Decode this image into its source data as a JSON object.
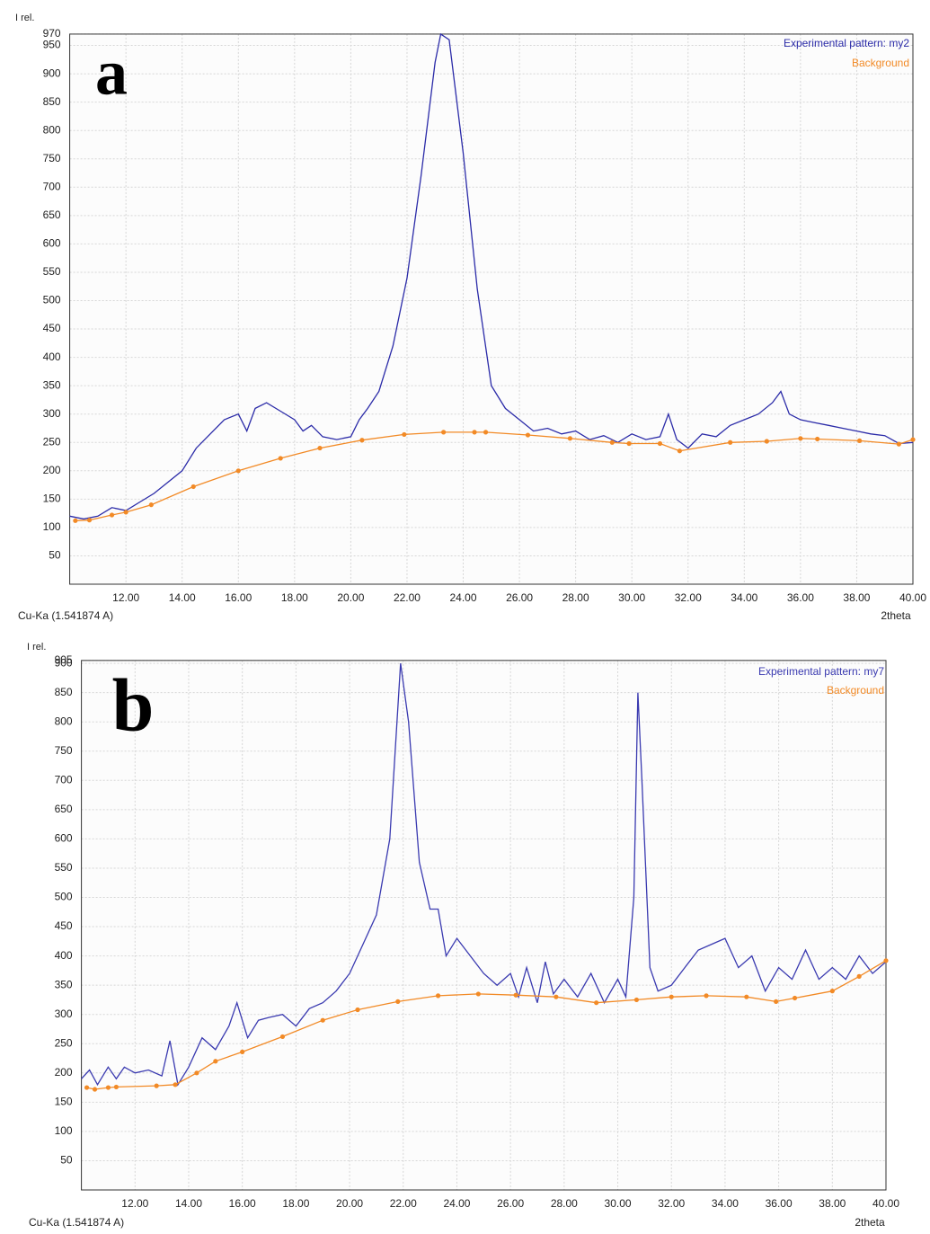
{
  "chart_data": [
    {
      "type": "line",
      "panel_label": "a",
      "y_label": "I rel.",
      "x_label": "2theta",
      "note": "Cu-Ka (1.541874 A)",
      "xlim": [
        10,
        40
      ],
      "ylim": [
        0,
        970
      ],
      "xticks": [
        {
          "value": 12,
          "label": "12.00"
        },
        {
          "value": 14,
          "label": "14.00"
        },
        {
          "value": 16,
          "label": "16.00"
        },
        {
          "value": 18,
          "label": "18.00"
        },
        {
          "value": 20,
          "label": "20.00"
        },
        {
          "value": 22,
          "label": "22.00"
        },
        {
          "value": 24,
          "label": "24.00"
        },
        {
          "value": 26,
          "label": "26.00"
        },
        {
          "value": 28,
          "label": "28.00"
        },
        {
          "value": 30,
          "label": "30.00"
        },
        {
          "value": 32,
          "label": "32.00"
        },
        {
          "value": 34,
          "label": "34.00"
        },
        {
          "value": 36,
          "label": "36.00"
        },
        {
          "value": 38,
          "label": "38.00"
        },
        {
          "value": 40,
          "label": "40.00"
        }
      ],
      "yticks": [
        50,
        100,
        150,
        200,
        250,
        300,
        350,
        400,
        450,
        500,
        550,
        600,
        650,
        700,
        750,
        800,
        850,
        900,
        950,
        970
      ],
      "grid": true,
      "legend": "upper right",
      "series": [
        {
          "name": "Experimental pattern: my2",
          "color": "#2b2ba8",
          "markers": false,
          "x": [
            10.0,
            10.5,
            11.0,
            11.5,
            12.0,
            12.5,
            13.0,
            13.5,
            14.0,
            14.5,
            15.0,
            15.5,
            16.0,
            16.3,
            16.6,
            17.0,
            17.5,
            18.0,
            18.3,
            18.6,
            19.0,
            19.5,
            20.0,
            20.3,
            20.6,
            21.0,
            21.5,
            22.0,
            22.5,
            23.0,
            23.2,
            23.5,
            24.0,
            24.5,
            25.0,
            25.5,
            26.0,
            26.5,
            27.0,
            27.5,
            28.0,
            28.5,
            29.0,
            29.5,
            30.0,
            30.5,
            31.0,
            31.3,
            31.6,
            32.0,
            32.5,
            33.0,
            33.5,
            34.0,
            34.5,
            35.0,
            35.3,
            35.6,
            36.0,
            36.5,
            37.0,
            37.5,
            38.0,
            38.5,
            39.0,
            39.5,
            40.0
          ],
          "values": [
            120,
            115,
            120,
            135,
            130,
            145,
            160,
            180,
            200,
            240,
            265,
            290,
            300,
            270,
            310,
            320,
            305,
            290,
            270,
            280,
            260,
            255,
            260,
            290,
            310,
            340,
            420,
            540,
            720,
            920,
            970,
            960,
            760,
            520,
            350,
            310,
            290,
            270,
            275,
            265,
            270,
            255,
            262,
            250,
            265,
            255,
            260,
            300,
            255,
            240,
            265,
            260,
            280,
            290,
            300,
            320,
            340,
            300,
            290,
            285,
            280,
            275,
            270,
            265,
            262,
            248,
            250
          ]
        },
        {
          "name": "Background",
          "color": "#f28a26",
          "markers": true,
          "x": [
            10.2,
            10.7,
            11.5,
            12.0,
            12.9,
            14.4,
            16.0,
            17.5,
            18.9,
            20.4,
            21.9,
            23.3,
            24.4,
            24.8,
            26.3,
            27.8,
            29.3,
            29.9,
            31.0,
            31.7,
            33.5,
            34.8,
            36.0,
            36.6,
            38.1,
            39.5,
            40.0
          ],
          "values": [
            112,
            113,
            122,
            127,
            140,
            172,
            200,
            222,
            240,
            254,
            264,
            268,
            268,
            268,
            263,
            257,
            250,
            248,
            248,
            235,
            250,
            252,
            257,
            256,
            253,
            247,
            255
          ]
        }
      ]
    },
    {
      "type": "line",
      "panel_label": "b",
      "y_label": "I rel.",
      "x_label": "2theta",
      "note": "Cu-Ka (1.541874 A)",
      "xlim": [
        10,
        40
      ],
      "ylim": [
        0,
        905
      ],
      "xticks": [
        {
          "value": 12,
          "label": "12.00"
        },
        {
          "value": 14,
          "label": "14.00"
        },
        {
          "value": 16,
          "label": "16.00"
        },
        {
          "value": 18,
          "label": "18.00"
        },
        {
          "value": 20,
          "label": "20.00"
        },
        {
          "value": 22,
          "label": "22.00"
        },
        {
          "value": 24,
          "label": "24.00"
        },
        {
          "value": 26,
          "label": "26.00"
        },
        {
          "value": 28,
          "label": "28.00"
        },
        {
          "value": 30,
          "label": "30.00"
        },
        {
          "value": 32,
          "label": "32.00"
        },
        {
          "value": 34,
          "label": "34.00"
        },
        {
          "value": 36,
          "label": "36.00"
        },
        {
          "value": 38,
          "label": "38.00"
        },
        {
          "value": 40,
          "label": "40.00"
        }
      ],
      "yticks": [
        50,
        100,
        150,
        200,
        250,
        300,
        350,
        400,
        450,
        500,
        550,
        600,
        650,
        700,
        750,
        800,
        850,
        900,
        905
      ],
      "grid": true,
      "legend": "upper right",
      "series": [
        {
          "name": "Experimental pattern: my7",
          "color": "#3a3ab0",
          "markers": false,
          "x": [
            10.0,
            10.3,
            10.6,
            11.0,
            11.3,
            11.6,
            12.0,
            12.5,
            13.0,
            13.3,
            13.6,
            14.0,
            14.5,
            15.0,
            15.5,
            15.8,
            16.2,
            16.6,
            17.0,
            17.5,
            18.0,
            18.5,
            19.0,
            19.5,
            20.0,
            20.5,
            21.0,
            21.5,
            21.9,
            22.2,
            22.6,
            23.0,
            23.3,
            23.6,
            24.0,
            24.5,
            25.0,
            25.5,
            26.0,
            26.3,
            26.6,
            27.0,
            27.3,
            27.6,
            28.0,
            28.5,
            29.0,
            29.5,
            30.0,
            30.3,
            30.6,
            30.75,
            30.9,
            31.2,
            31.5,
            32.0,
            32.5,
            33.0,
            33.5,
            34.0,
            34.5,
            35.0,
            35.5,
            36.0,
            36.5,
            37.0,
            37.5,
            38.0,
            38.5,
            39.0,
            39.5,
            40.0
          ],
          "values": [
            190,
            205,
            180,
            210,
            190,
            210,
            200,
            205,
            195,
            255,
            180,
            210,
            260,
            240,
            280,
            320,
            260,
            290,
            295,
            300,
            280,
            310,
            320,
            340,
            370,
            420,
            470,
            600,
            900,
            800,
            560,
            480,
            480,
            400,
            430,
            400,
            370,
            350,
            370,
            330,
            380,
            320,
            390,
            335,
            360,
            330,
            370,
            320,
            360,
            330,
            500,
            850,
            700,
            380,
            340,
            350,
            380,
            410,
            420,
            430,
            380,
            400,
            340,
            380,
            360,
            410,
            360,
            380,
            360,
            400,
            370,
            390
          ]
        },
        {
          "name": "Background",
          "color": "#f28a26",
          "markers": true,
          "x": [
            10.2,
            10.5,
            11.0,
            11.3,
            12.8,
            13.5,
            14.3,
            15.0,
            16.0,
            17.5,
            19.0,
            20.3,
            21.8,
            23.3,
            24.8,
            26.2,
            27.7,
            29.2,
            30.7,
            32.0,
            33.3,
            34.8,
            35.9,
            36.6,
            38.0,
            39.0,
            40.0
          ],
          "values": [
            175,
            172,
            175,
            176,
            178,
            180,
            200,
            220,
            236,
            262,
            290,
            308,
            322,
            332,
            335,
            333,
            330,
            320,
            325,
            330,
            332,
            330,
            322,
            328,
            340,
            365,
            392
          ]
        }
      ]
    }
  ]
}
